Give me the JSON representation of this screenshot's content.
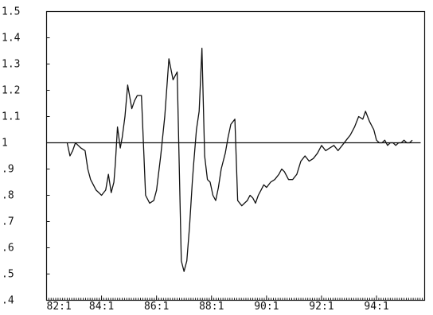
{
  "chart_data": {
    "type": "line",
    "title": "",
    "xlabel": "",
    "ylabel": "",
    "ylim": [
      0.4,
      1.5
    ],
    "xlim": [
      82.0,
      95.75
    ],
    "y_ticks": [
      0.4,
      0.5,
      0.6,
      0.7,
      0.8,
      0.9,
      1,
      1.1,
      1.2,
      1.3,
      1.4,
      1.5
    ],
    "y_tick_labels": [
      ".4",
      ".5",
      ".6",
      ".7",
      ".8",
      ".9",
      "1",
      "1.1",
      "1.2",
      "1.3",
      "1.4",
      "1.5"
    ],
    "x_ticks": [
      82,
      84,
      86,
      88,
      90,
      92,
      94
    ],
    "x_tick_labels": [
      "82:1",
      "84:1",
      "86:1",
      "88:1",
      "90:1",
      "92:1",
      "94:1"
    ],
    "reference_line": 1,
    "grid": false,
    "colors": {
      "line": "#111111",
      "background": "#ffffff"
    },
    "series": [
      {
        "x": [
          82.75,
          82.85,
          82.95,
          83.05,
          83.15,
          83.25,
          83.4,
          83.5,
          83.6,
          83.8,
          84.0,
          84.15,
          84.25,
          84.35,
          84.45,
          84.5,
          84.58,
          84.68,
          84.75,
          84.85,
          84.95,
          85.05,
          85.1,
          85.2,
          85.3,
          85.45,
          85.6,
          85.75,
          85.9,
          86.0,
          86.15,
          86.3,
          86.45,
          86.6,
          86.75,
          86.9,
          87.0,
          87.1,
          87.2,
          87.3,
          87.35,
          87.45,
          87.55,
          87.65,
          87.75,
          87.85,
          87.95,
          88.05,
          88.15,
          88.25,
          88.35,
          88.4,
          88.5,
          88.6,
          88.7,
          88.85,
          88.95,
          89.1,
          89.2,
          89.3,
          89.4,
          89.5,
          89.6,
          89.7,
          89.8,
          89.9,
          90.0,
          90.15,
          90.3,
          90.45,
          90.55,
          90.65,
          90.8,
          90.95,
          91.1,
          91.25,
          91.4,
          91.55,
          91.7,
          91.85,
          92.0,
          92.15,
          92.3,
          92.45,
          92.6,
          92.75,
          92.9,
          93.05,
          93.2,
          93.35,
          93.5,
          93.6,
          93.75,
          93.9,
          94.0,
          94.1,
          94.2,
          94.3,
          94.4,
          94.5,
          94.6,
          94.7,
          94.8,
          94.9,
          95.0,
          95.1,
          95.2,
          95.3
        ],
        "values": [
          1.0,
          0.95,
          0.97,
          1.0,
          0.99,
          0.98,
          0.97,
          0.9,
          0.86,
          0.82,
          0.8,
          0.82,
          0.88,
          0.81,
          0.85,
          0.92,
          1.06,
          0.98,
          1.02,
          1.1,
          1.22,
          1.16,
          1.13,
          1.16,
          1.18,
          1.18,
          0.8,
          0.77,
          0.78,
          0.82,
          0.95,
          1.1,
          1.32,
          1.24,
          1.27,
          0.55,
          0.51,
          0.55,
          0.68,
          0.85,
          0.92,
          1.05,
          1.12,
          1.36,
          0.95,
          0.86,
          0.85,
          0.8,
          0.78,
          0.83,
          0.9,
          0.92,
          0.96,
          1.02,
          1.07,
          1.09,
          0.78,
          0.76,
          0.77,
          0.78,
          0.8,
          0.79,
          0.77,
          0.8,
          0.82,
          0.84,
          0.83,
          0.85,
          0.86,
          0.88,
          0.9,
          0.89,
          0.86,
          0.86,
          0.88,
          0.93,
          0.95,
          0.93,
          0.94,
          0.96,
          0.99,
          0.97,
          0.98,
          0.99,
          0.97,
          0.99,
          1.01,
          1.03,
          1.06,
          1.1,
          1.09,
          1.12,
          1.08,
          1.05,
          1.01,
          1.0,
          1.0,
          1.01,
          0.99,
          1.0,
          1.0,
          0.99,
          1.0,
          1.0,
          1.01,
          1.0,
          1.0,
          1.01
        ]
      }
    ]
  }
}
